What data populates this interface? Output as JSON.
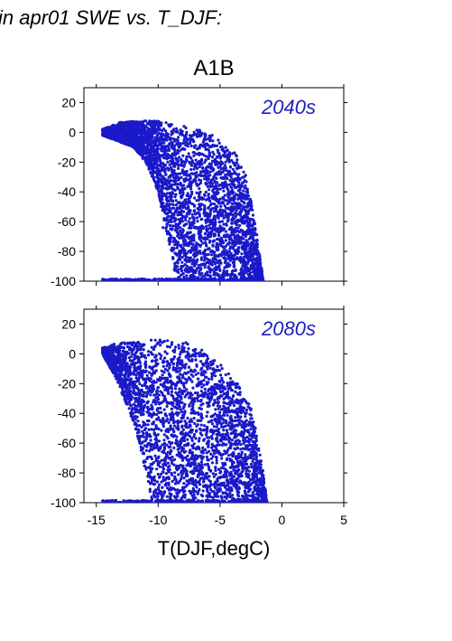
{
  "header": {
    "text": "in apr01 SWE vs. T_DJF:"
  },
  "colors": {
    "points": "#1a1ac8",
    "panel_label": "#2020c0",
    "axis": "#000000"
  },
  "chart_data": [
    {
      "type": "scatter",
      "title": "A1B",
      "panel_label": "2040s",
      "xlim": [
        -16,
        5
      ],
      "ylim": [
        -100,
        30
      ],
      "y_ticks": [
        "20",
        "0",
        "-20",
        "-40",
        "-60",
        "-80",
        "-100"
      ],
      "x_ticks": [
        "-15",
        "-10",
        "-5",
        "0",
        "5"
      ],
      "show_x_tick_labels": false,
      "xlabel": "",
      "envelope_upper": [
        [
          -14.5,
          2
        ],
        [
          -13,
          7
        ],
        [
          -11,
          8
        ],
        [
          -9,
          7
        ],
        [
          -7.5,
          4
        ],
        [
          -6,
          0
        ],
        [
          -4.5,
          -8
        ],
        [
          -3.5,
          -15
        ],
        [
          -3,
          -25
        ],
        [
          -2.5,
          -45
        ],
        [
          -2,
          -70
        ],
        [
          -1.5,
          -100
        ]
      ],
      "envelope_lower": [
        [
          -14.5,
          -2
        ],
        [
          -12,
          -10
        ],
        [
          -11,
          -20
        ],
        [
          -10,
          -40
        ],
        [
          -9.5,
          -60
        ],
        [
          -9,
          -80
        ],
        [
          -8.5,
          -100
        ]
      ],
      "points": [
        [
          -13.2,
          4
        ],
        [
          -12.1,
          -6
        ],
        [
          -10.4,
          -22
        ],
        [
          -9.3,
          -35
        ],
        [
          -8.1,
          -48
        ],
        [
          -7.0,
          -55
        ],
        [
          -6.2,
          -72
        ],
        [
          -5.1,
          -88
        ],
        [
          -4.0,
          -95
        ],
        [
          -3.2,
          -60
        ],
        [
          -7.8,
          -20
        ],
        [
          -5.5,
          -30
        ],
        [
          -4.1,
          -40
        ],
        [
          -3.0,
          -52
        ],
        [
          -8.8,
          -85
        ],
        [
          -6.5,
          -98
        ],
        [
          -9.6,
          -64
        ],
        [
          -2.6,
          -78
        ],
        [
          -11.5,
          -12
        ],
        [
          -10.0,
          2
        ]
      ]
    },
    {
      "type": "scatter",
      "panel_label": "2080s",
      "xlim": [
        -16,
        5
      ],
      "ylim": [
        -100,
        30
      ],
      "y_ticks": [
        "20",
        "0",
        "-20",
        "-40",
        "-60",
        "-80",
        "-100"
      ],
      "x_ticks": [
        "-15",
        "-10",
        "-5",
        "0",
        "5"
      ],
      "show_x_tick_labels": true,
      "xlabel": "T(DJF,degC)",
      "envelope_upper": [
        [
          -14.5,
          4
        ],
        [
          -13,
          8
        ],
        [
          -11,
          9
        ],
        [
          -9,
          10
        ],
        [
          -7.5,
          8
        ],
        [
          -6.5,
          3
        ],
        [
          -5.5,
          -3
        ],
        [
          -4.5,
          -10
        ],
        [
          -3.5,
          -20
        ],
        [
          -2.5,
          -35
        ],
        [
          -2,
          -55
        ],
        [
          -1.5,
          -80
        ],
        [
          -1.2,
          -100
        ]
      ],
      "envelope_lower": [
        [
          -14.5,
          0
        ],
        [
          -13.5,
          -15
        ],
        [
          -12.5,
          -35
        ],
        [
          -11.5,
          -60
        ],
        [
          -11,
          -80
        ],
        [
          -10.5,
          -100
        ]
      ],
      "points": [
        [
          -13.0,
          -8
        ],
        [
          -12.2,
          -30
        ],
        [
          -11.0,
          -50
        ],
        [
          -10.0,
          -70
        ],
        [
          -9.0,
          -90
        ],
        [
          -8.0,
          -99
        ],
        [
          -7.0,
          -40
        ],
        [
          -6.0,
          -60
        ],
        [
          -5.0,
          -80
        ],
        [
          -4.0,
          -95
        ],
        [
          -3.0,
          -70
        ],
        [
          -2.0,
          -85
        ],
        [
          -8.5,
          -10
        ],
        [
          -10.5,
          -5
        ],
        [
          -6.5,
          -25
        ],
        [
          -4.5,
          -45
        ]
      ]
    }
  ]
}
